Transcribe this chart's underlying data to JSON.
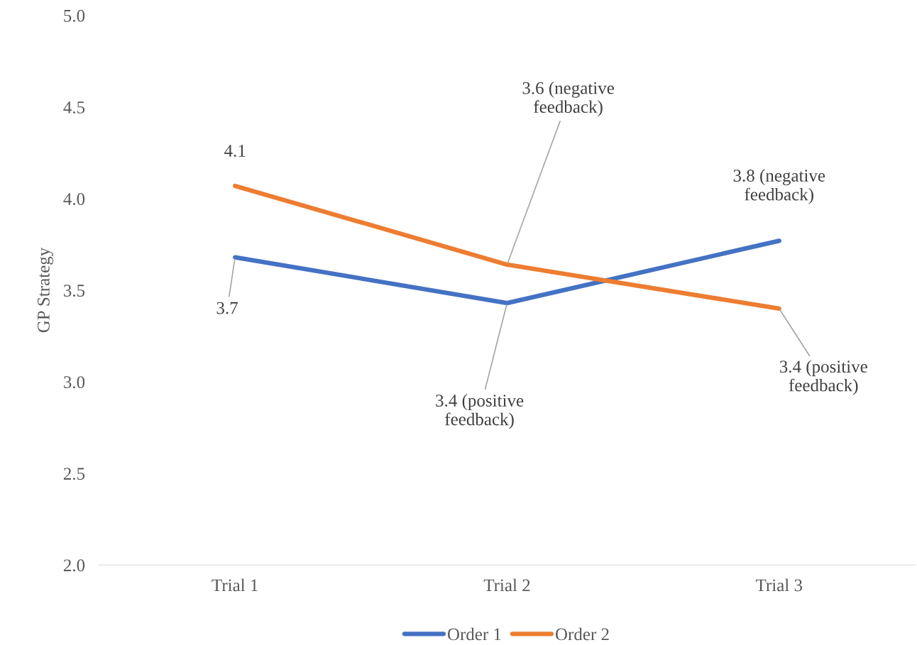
{
  "chart_data": {
    "type": "line",
    "ylabel": "GP Strategy",
    "categories": [
      "Trial 1",
      "Trial 2",
      "Trial 3"
    ],
    "series": [
      {
        "name": "Order 1",
        "color": "#4472c4",
        "values": [
          3.68,
          3.43,
          3.77
        ],
        "value_labels": [
          "3.7",
          "3.4 (positive\nfeedback)",
          "3.8 (negative\nfeedback)"
        ]
      },
      {
        "name": "Order 2",
        "color": "#ed7d31",
        "values": [
          4.07,
          3.64,
          3.4
        ],
        "value_labels": [
          "4.1",
          "3.6 (negative\nfeedback)",
          "3.4 (positive\nfeedback)"
        ]
      }
    ],
    "ylim": [
      2,
      5
    ],
    "yticks": [
      {
        "value": 2,
        "label": "2.0"
      },
      {
        "value": 2.5,
        "label": "2.5"
      },
      {
        "value": 3,
        "label": "3.0"
      },
      {
        "value": 3.5,
        "label": "3.5"
      },
      {
        "value": 4,
        "label": "4.0"
      },
      {
        "value": 4.5,
        "label": "4.5"
      },
      {
        "value": 5,
        "label": "5.0"
      }
    ],
    "grid": false,
    "legend": "bottom",
    "marker": "none",
    "line_style": "solid"
  }
}
